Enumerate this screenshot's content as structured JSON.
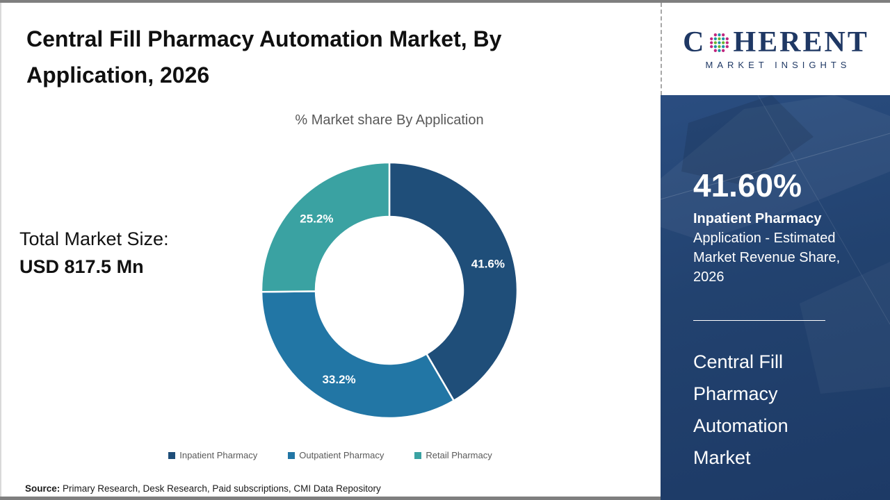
{
  "header": {
    "title": "Central Fill Pharmacy Automation Market, By Application, 2026"
  },
  "logo": {
    "name_prefix": "C",
    "name_suffix": "HERENT",
    "tagline": "MARKET INSIGHTS",
    "brand_color": "#1f3864"
  },
  "market_size": {
    "label": "Total Market Size:",
    "value": "USD 817.5 Mn"
  },
  "chart_data": {
    "type": "pie",
    "donut": true,
    "title": "% Market share By Application",
    "categories": [
      "Inpatient Pharmacy",
      "Outpatient Pharmacy",
      "Retail Pharmacy"
    ],
    "values": [
      41.6,
      33.2,
      25.2
    ],
    "labels": [
      "41.6%",
      "33.2%",
      "25.2%"
    ],
    "colors": [
      "#1f4e79",
      "#2276a5",
      "#3aa2a2"
    ],
    "legend_position": "bottom",
    "start_angle_deg": 0,
    "direction": "clockwise"
  },
  "sidebar": {
    "stat_value": "41.60%",
    "stat_label_bold": "Inpatient Pharmacy",
    "stat_label_rest": "Application - Estimated Market Revenue Share, 2026",
    "market_name": "Central Fill Pharmacy Automation Market",
    "background_color": "#1f3c68"
  },
  "source": {
    "label": "Source:",
    "text": "Primary Research, Desk Research, Paid subscriptions, CMI Data Repository"
  }
}
